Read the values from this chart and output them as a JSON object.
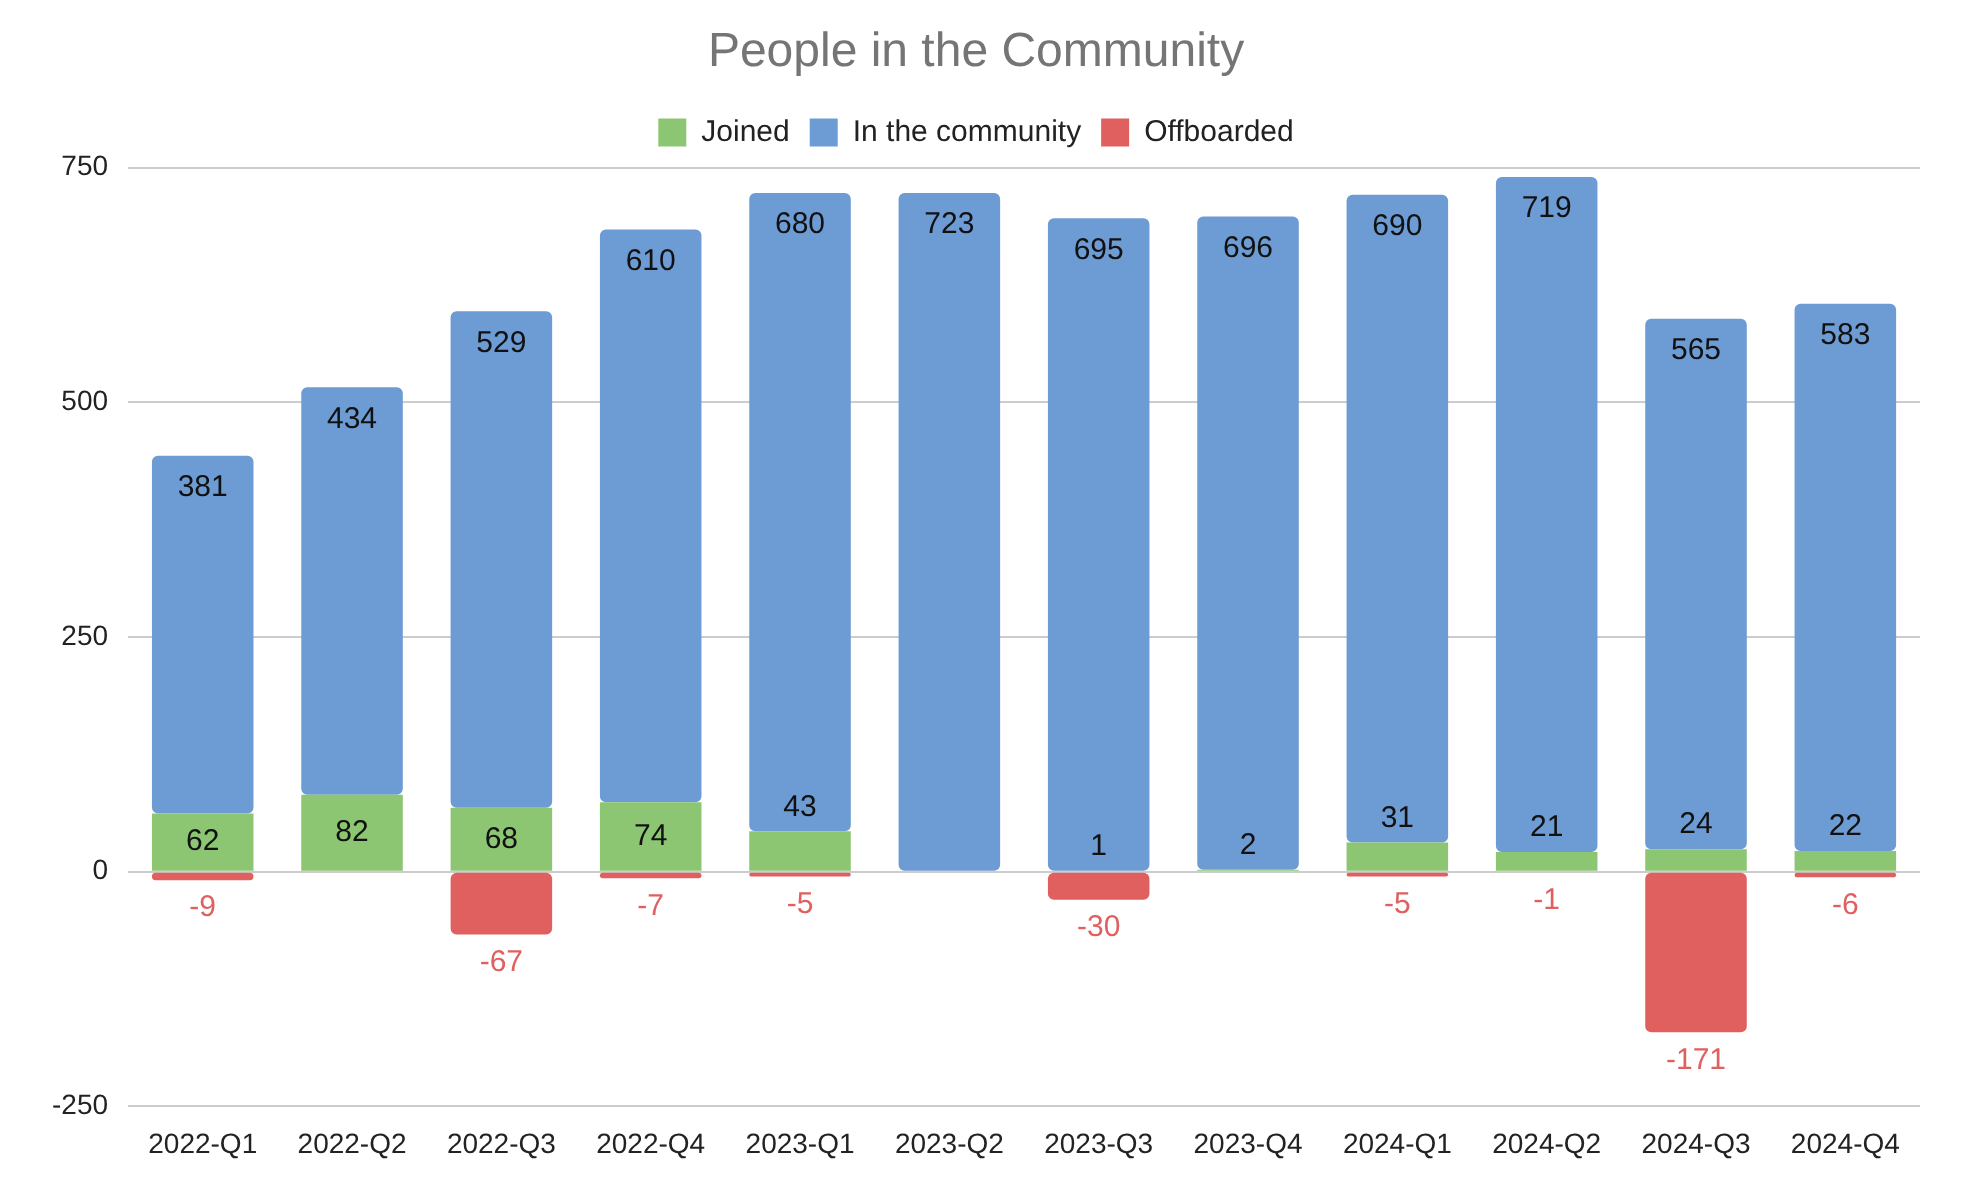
{
  "chart_data": {
    "type": "bar",
    "title": "People in the Community",
    "stacked": true,
    "categories": [
      "2022-Q1",
      "2022-Q2",
      "2022-Q3",
      "2022-Q4",
      "2023-Q1",
      "2023-Q2",
      "2023-Q3",
      "2023-Q4",
      "2024-Q1",
      "2024-Q2",
      "2024-Q3",
      "2024-Q4"
    ],
    "series": [
      {
        "name": "Joined",
        "color": "#8cc672",
        "values": [
          62,
          82,
          68,
          74,
          43,
          null,
          1,
          2,
          31,
          21,
          24,
          22
        ]
      },
      {
        "name": "In the community",
        "color": "#6d9bd3",
        "values": [
          381,
          434,
          529,
          610,
          680,
          723,
          695,
          696,
          690,
          719,
          565,
          583
        ]
      },
      {
        "name": "Offboarded",
        "color": "#e06060",
        "values": [
          -9,
          null,
          -67,
          -7,
          -5,
          null,
          -30,
          null,
          -5,
          -1,
          -171,
          -6
        ]
      }
    ],
    "ylim": [
      -250,
      750
    ],
    "yticks": [
      -250,
      0,
      250,
      500,
      750
    ],
    "grid": "y",
    "legend": "top",
    "data_labels": true
  }
}
